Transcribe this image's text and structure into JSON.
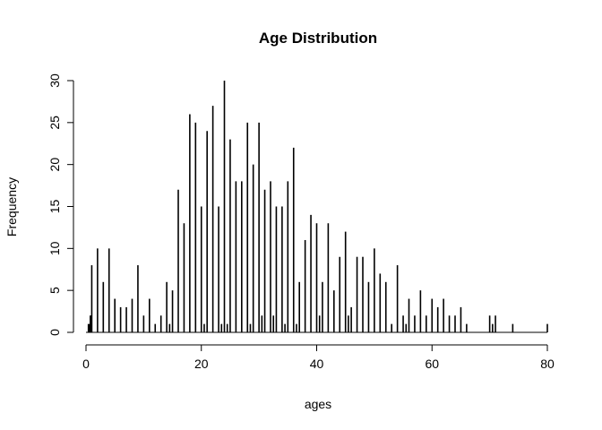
{
  "chart_data": {
    "type": "bar",
    "title": "Age Distribution",
    "xlabel": "ages",
    "ylabel": "Frequency",
    "xlim": [
      0,
      80
    ],
    "ylim": [
      0,
      30
    ],
    "xticks": [
      0,
      20,
      40,
      60,
      80
    ],
    "yticks": [
      0,
      5,
      10,
      15,
      20,
      25,
      30
    ],
    "grid": false,
    "x": [
      0.42,
      0.67,
      0.75,
      0.83,
      0.92,
      1,
      2,
      3,
      4,
      5,
      6,
      7,
      8,
      9,
      10,
      11,
      12,
      13,
      14,
      14.5,
      15,
      16,
      17,
      18,
      19,
      20,
      20.5,
      21,
      22,
      23,
      23.5,
      24,
      24.5,
      25,
      26,
      27,
      28,
      28.5,
      29,
      30,
      30.5,
      31,
      32,
      32.5,
      33,
      34,
      34.5,
      35,
      36,
      36.5,
      37,
      38,
      39,
      40,
      40.5,
      41,
      42,
      43,
      44,
      45,
      45.5,
      46,
      47,
      48,
      49,
      50,
      51,
      52,
      53,
      54,
      55,
      55.5,
      56,
      57,
      58,
      59,
      60,
      61,
      62,
      63,
      64,
      65,
      66,
      70,
      70.5,
      71,
      74,
      80
    ],
    "values": [
      1,
      1,
      2,
      2,
      1,
      8,
      10,
      6,
      10,
      4,
      3,
      3,
      4,
      8,
      2,
      4,
      1,
      2,
      6,
      1,
      5,
      17,
      13,
      26,
      25,
      15,
      1,
      24,
      27,
      15,
      1,
      30,
      1,
      23,
      18,
      18,
      25,
      1,
      20,
      25,
      2,
      17,
      18,
      2,
      15,
      15,
      1,
      18,
      22,
      1,
      6,
      11,
      14,
      13,
      2,
      6,
      13,
      5,
      9,
      12,
      2,
      3,
      9,
      9,
      6,
      10,
      7,
      6,
      1,
      8,
      2,
      1,
      4,
      2,
      5,
      2,
      4,
      3,
      4,
      2,
      2,
      3,
      1,
      2,
      1,
      2,
      1,
      1
    ]
  }
}
